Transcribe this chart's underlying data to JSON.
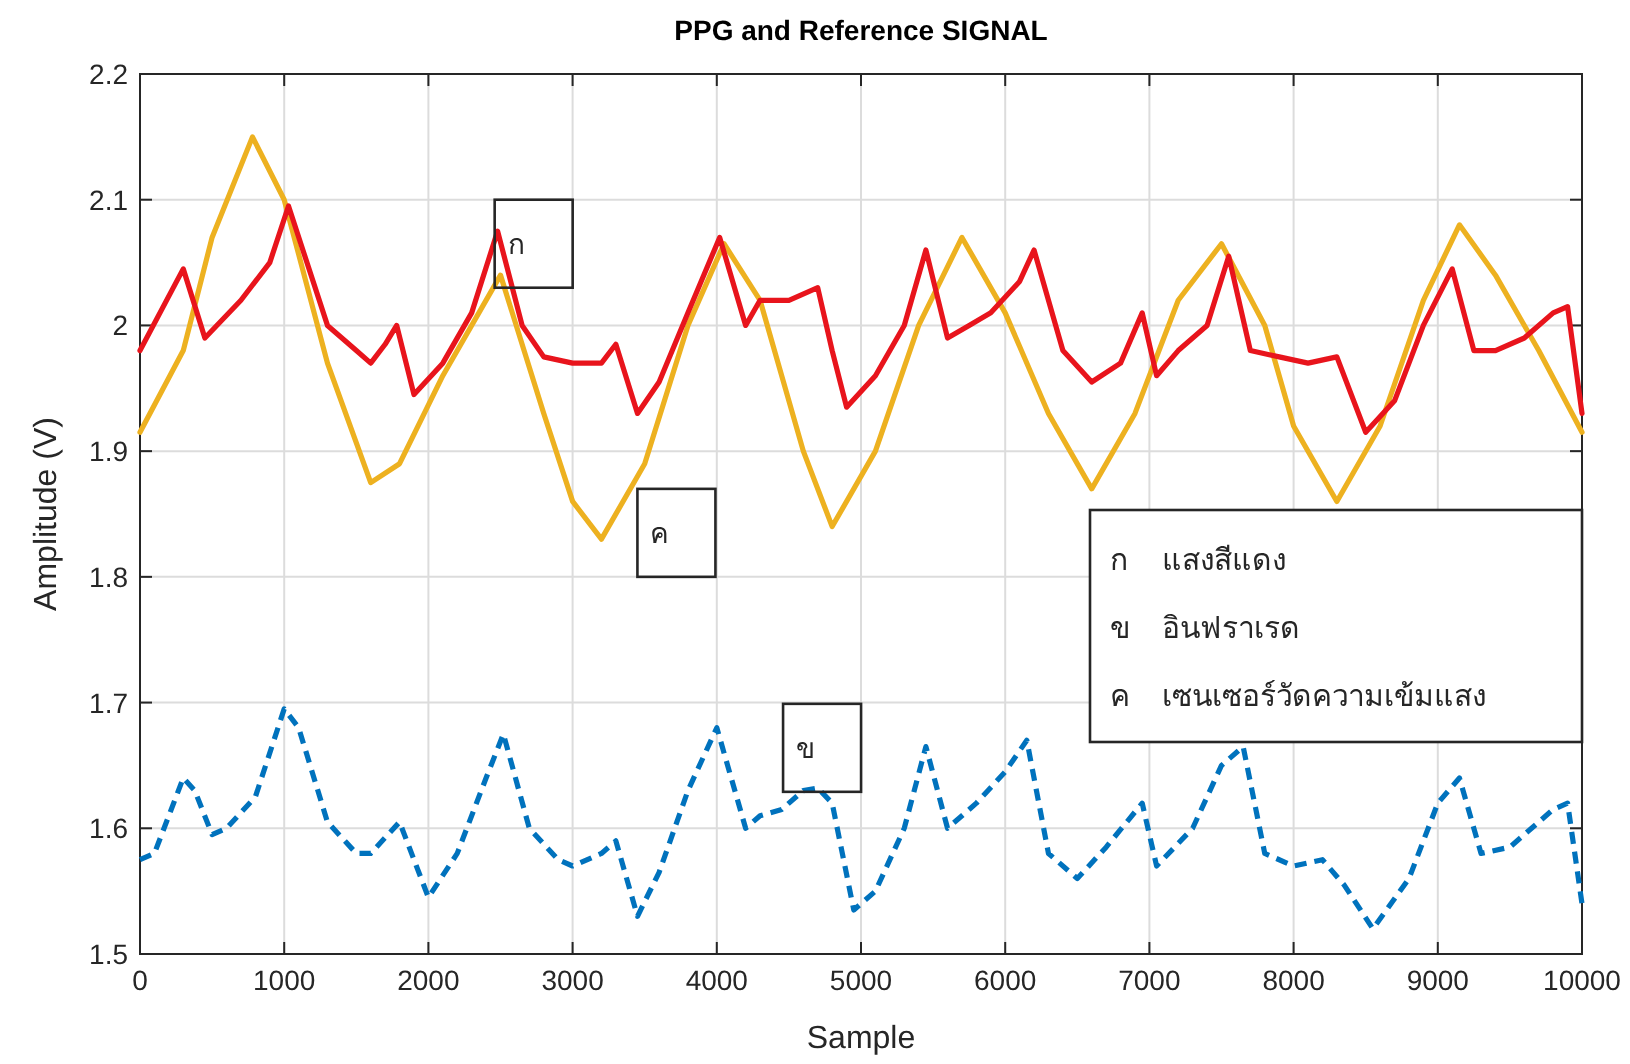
{
  "chart_data": {
    "type": "line",
    "title": "PPG and Reference SIGNAL",
    "xlabel": "Sample",
    "ylabel": "Amplitude (V)",
    "xlim": [
      0,
      10000
    ],
    "ylim": [
      1.5,
      2.2
    ],
    "xticks": [
      0,
      1000,
      2000,
      3000,
      4000,
      5000,
      6000,
      7000,
      8000,
      9000,
      10000
    ],
    "yticks": [
      1.5,
      1.6,
      1.7,
      1.8,
      1.9,
      2,
      2.1,
      2.2
    ],
    "grid": true,
    "line_style": "solid",
    "series": [
      {
        "color": "#edb120",
        "x": [
          0,
          300,
          500,
          780,
          1000,
          1300,
          1600,
          1800,
          2100,
          2500,
          2800,
          3000,
          3200,
          3500,
          3800,
          4050,
          4300,
          4600,
          4800,
          5100,
          5400,
          5700,
          6000,
          6300,
          6600,
          6900,
          7200,
          7500,
          7800,
          8000,
          8300,
          8600,
          8900,
          9150,
          9400,
          9700,
          10000
        ],
        "values": [
          1.915,
          1.98,
          2.07,
          2.15,
          2.1,
          1.97,
          1.875,
          1.89,
          1.96,
          2.04,
          1.93,
          1.86,
          1.83,
          1.89,
          2.0,
          2.065,
          2.02,
          1.9,
          1.84,
          1.9,
          2.0,
          2.07,
          2.01,
          1.93,
          1.87,
          1.93,
          2.02,
          2.065,
          2.0,
          1.92,
          1.86,
          1.92,
          2.02,
          2.08,
          2.04,
          1.98,
          1.915
        ]
      },
      {
        "color": "#e8141c",
        "x": [
          0,
          300,
          450,
          700,
          900,
          1030,
          1300,
          1500,
          1600,
          1700,
          1780,
          1900,
          2100,
          2300,
          2480,
          2650,
          2800,
          3000,
          3200,
          3300,
          3450,
          3600,
          3800,
          4020,
          4200,
          4300,
          4500,
          4700,
          4800,
          4900,
          5100,
          5300,
          5450,
          5600,
          5750,
          5900,
          6100,
          6200,
          6400,
          6600,
          6800,
          6950,
          7050,
          7200,
          7400,
          7550,
          7700,
          7900,
          8100,
          8300,
          8500,
          8700,
          8900,
          9100,
          9250,
          9400,
          9600,
          9800,
          9900,
          10000
        ],
        "values": [
          1.98,
          2.045,
          1.99,
          2.02,
          2.05,
          2.095,
          2.0,
          1.98,
          1.97,
          1.985,
          2.0,
          1.945,
          1.97,
          2.01,
          2.075,
          2.0,
          1.975,
          1.97,
          1.97,
          1.985,
          1.93,
          1.955,
          2.01,
          2.07,
          2.0,
          2.02,
          2.02,
          2.03,
          1.98,
          1.935,
          1.96,
          2.0,
          2.06,
          1.99,
          2.0,
          2.01,
          2.035,
          2.06,
          1.98,
          1.955,
          1.97,
          2.01,
          1.96,
          1.98,
          2.0,
          2.055,
          1.98,
          1.975,
          1.97,
          1.975,
          1.915,
          1.94,
          2.0,
          2.045,
          1.98,
          1.98,
          1.99,
          2.01,
          2.015,
          1.93
        ]
      },
      {
        "color": "#0072bd",
        "line_style": "dashed",
        "x": [
          0,
          100,
          300,
          380,
          500,
          600,
          800,
          1000,
          1100,
          1300,
          1500,
          1600,
          1800,
          2000,
          2200,
          2400,
          2520,
          2700,
          2900,
          3000,
          3200,
          3300,
          3450,
          3600,
          3800,
          4000,
          4200,
          4300,
          4450,
          4600,
          4700,
          4800,
          4950,
          5100,
          5300,
          5450,
          5600,
          5800,
          6000,
          6150,
          6300,
          6500,
          6700,
          6950,
          7050,
          7300,
          7500,
          7650,
          7800,
          8000,
          8200,
          8350,
          8550,
          8800,
          9000,
          9150,
          9300,
          9500,
          9800,
          9900,
          10000
        ],
        "values": [
          1.575,
          1.58,
          1.64,
          1.63,
          1.595,
          1.6,
          1.625,
          1.695,
          1.68,
          1.605,
          1.58,
          1.58,
          1.605,
          1.545,
          1.58,
          1.64,
          1.675,
          1.6,
          1.575,
          1.57,
          1.58,
          1.59,
          1.53,
          1.565,
          1.63,
          1.68,
          1.6,
          1.61,
          1.615,
          1.63,
          1.632,
          1.62,
          1.535,
          1.55,
          1.6,
          1.665,
          1.6,
          1.62,
          1.645,
          1.67,
          1.58,
          1.56,
          1.585,
          1.62,
          1.57,
          1.6,
          1.65,
          1.665,
          1.58,
          1.57,
          1.575,
          1.555,
          1.52,
          1.56,
          1.62,
          1.64,
          1.58,
          1.585,
          1.615,
          1.62,
          1.54
        ]
      }
    ],
    "annotations": [
      {
        "text": "ก",
        "x": 2730,
        "y": 2.065
      },
      {
        "text": "ค",
        "x": 3720,
        "y": 1.835
      },
      {
        "text": "ข",
        "x": 4730,
        "y": 1.664
      },
      "ก",
      "แสงสีแดง",
      "ข",
      "อินฟราเรด",
      "ค",
      "เซนเซอร์วัดความเข้มแสง"
    ]
  }
}
